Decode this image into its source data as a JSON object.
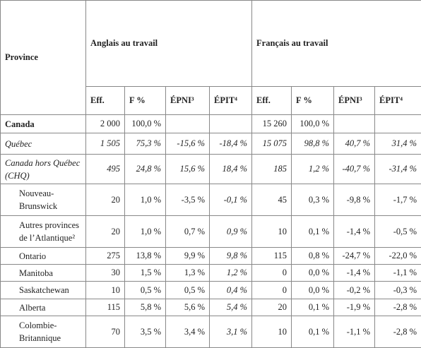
{
  "header": {
    "province": "Province",
    "groups": [
      "Anglais au travail",
      "Français au travail"
    ],
    "columns": [
      "Eff.",
      "F %",
      "ÉPNI³",
      "ÉPIT⁴",
      "Eff.",
      "F %",
      "ÉPNI³",
      "ÉPIT⁴"
    ]
  },
  "rows": [
    {
      "label": "Canada",
      "cells": [
        "2 000",
        "100,0 %",
        null,
        null,
        "15 260",
        "100,0 %",
        null,
        null
      ]
    },
    {
      "label": "Québec",
      "cells": [
        "1 505",
        "75,3 %",
        "-15,6 %",
        "-18,4 %",
        "15 075",
        "98,8 %",
        "40,7 %",
        "31,4 %"
      ]
    },
    {
      "label": "Canada hors Québec (CHQ)",
      "cells": [
        "495",
        "24,8 %",
        "15,6 %",
        "18,4 %",
        "185",
        "1,2 %",
        "-40,7 %",
        "-31,4 %"
      ]
    },
    {
      "label": "Nouveau-Brunswick",
      "cells": [
        "20",
        "1,0 %",
        "-3,5 %",
        "-0,1 %",
        "45",
        "0,3 %",
        "-9,8 %",
        "-1,7 %"
      ]
    },
    {
      "label": "Autres provinces de l’Atlantique²",
      "cells": [
        "20",
        "1,0 %",
        "0,7 %",
        "0,9 %",
        "10",
        "0,1 %",
        "-1,4 %",
        "-0,5 %"
      ]
    },
    {
      "label": "Ontario",
      "cells": [
        "275",
        "13,8 %",
        "9,9 %",
        "9,8 %",
        "115",
        "0,8 %",
        "-24,7 %",
        "-22,0 %"
      ]
    },
    {
      "label": "Manitoba",
      "cells": [
        "30",
        "1,5 %",
        "1,3 %",
        "1,2 %",
        "0",
        "0,0 %",
        "-1,4 %",
        "-1,1 %"
      ]
    },
    {
      "label": "Saskatchewan",
      "cells": [
        "10",
        "0,5 %",
        "0,5 %",
        "0,4 %",
        "0",
        "0,0 %",
        "-0,2 %",
        "-0,3 %"
      ]
    },
    {
      "label": "Alberta",
      "cells": [
        "115",
        "5,8 %",
        "5,6 %",
        "5,4 %",
        "20",
        "0,1 %",
        "-1,9 %",
        "-2,8 %"
      ]
    },
    {
      "label": "Colombie-Britannique",
      "cells": [
        "70",
        "3,5 %",
        "3,4 %",
        "3,1 %",
        "10",
        "0,1 %",
        "-1,1 %",
        "-2,8 %"
      ]
    }
  ]
}
